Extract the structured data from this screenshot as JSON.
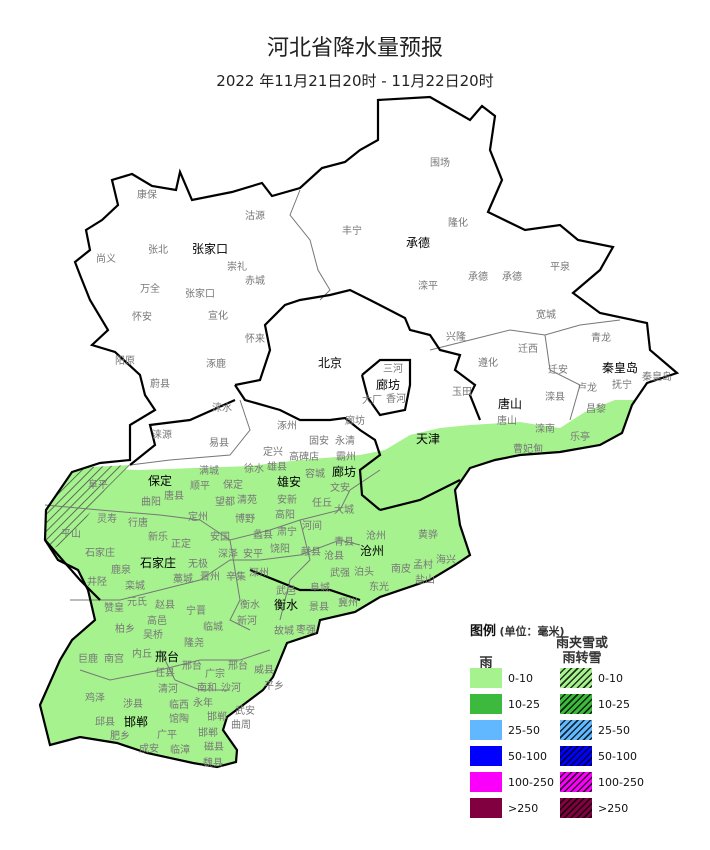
{
  "title": "河北省降水量预报",
  "subtitle": "2022 年11月21日20时 - 11月22日20时",
  "cities": [
    "张家口",
    "北京",
    "承德",
    "廊坊",
    "唐山",
    "秦皇岛",
    "天津",
    "保定",
    "雄安",
    "廊坊",
    "石家庄",
    "沧州",
    "衡水",
    "邢台",
    "邯郸"
  ],
  "counties": [
    "康保",
    "沽源",
    "围场",
    "张北",
    "尚义",
    "崇礼",
    "赤城",
    "丰宁",
    "隆化",
    "万全",
    "张家口",
    "怀安",
    "宣化",
    "怀来",
    "滦平",
    "承德",
    "承德",
    "平泉",
    "宽城",
    "兴隆",
    "青龙",
    "阳原",
    "涿鹿",
    "蔚县",
    "迁西",
    "遵化",
    "迁安",
    "卢龙",
    "抚宁",
    "秦皇岛",
    "三河",
    "大厂",
    "香河",
    "玉田",
    "唐山",
    "滦县",
    "昌黎",
    "滦南",
    "乐亭",
    "曹妃甸",
    "涞水",
    "涞源",
    "易县",
    "涿州",
    "固安",
    "永清",
    "廊坊",
    "定兴",
    "高碑店",
    "霸州",
    "满城",
    "徐水",
    "容城",
    "雄县",
    "阜平",
    "顺平",
    "唐县",
    "保定",
    "安新",
    "文安",
    "曲阳",
    "望都",
    "清苑",
    "高阳",
    "任丘",
    "大城",
    "灵寿",
    "行唐",
    "定州",
    "博野",
    "蠡县",
    "河间",
    "青县",
    "平山",
    "新乐",
    "安国",
    "肃宁",
    "沧县",
    "沧州",
    "黄骅",
    "正定",
    "石家庄",
    "无极",
    "深泽",
    "安平",
    "饶阳",
    "献县",
    "鹿泉",
    "藁城",
    "晋州",
    "辛集",
    "深州",
    "武强",
    "泊头",
    "南皮",
    "孟村",
    "海兴",
    "井陉",
    "栾城",
    "元氏",
    "赵县",
    "武邑",
    "阜城",
    "东光",
    "盐山",
    "赞皇",
    "高邑",
    "宁晋",
    "冀州",
    "衡水",
    "景县",
    "吴桥",
    "柏乡",
    "临城",
    "新河",
    "枣强",
    "故城",
    "内丘",
    "隆尧",
    "巨鹿",
    "南宫",
    "邢台",
    "邢台",
    "任县",
    "广宗",
    "威县",
    "清河",
    "南和",
    "平乡",
    "沙河",
    "鸡泽",
    "永年",
    "临西",
    "武安",
    "邯郸",
    "曲周",
    "邱县",
    "馆陶",
    "涉县",
    "肥乡",
    "广平",
    "邯郸",
    "磁县",
    "成安",
    "临漳",
    "魏县",
    "大名"
  ],
  "legend": {
    "title": "图例",
    "unit": "(单位：毫米)",
    "rain_header": "雨",
    "mixed_header": "雨夹雪或雨转雪",
    "items": [
      {
        "label": "0-10",
        "color": "#a6f28f"
      },
      {
        "label": "10-25",
        "color": "#3dba3d"
      },
      {
        "label": "25-50",
        "color": "#61b8ff"
      },
      {
        "label": "50-100",
        "color": "#0000ff"
      },
      {
        "label": "100-250",
        "color": "#fa00fa"
      },
      {
        "label": ">250",
        "color": "#800040"
      }
    ]
  },
  "forecast_areas": [
    {
      "category": "rain",
      "range": "0-10"
    },
    {
      "category": "rain-snow-mix",
      "range": "0-10"
    }
  ]
}
